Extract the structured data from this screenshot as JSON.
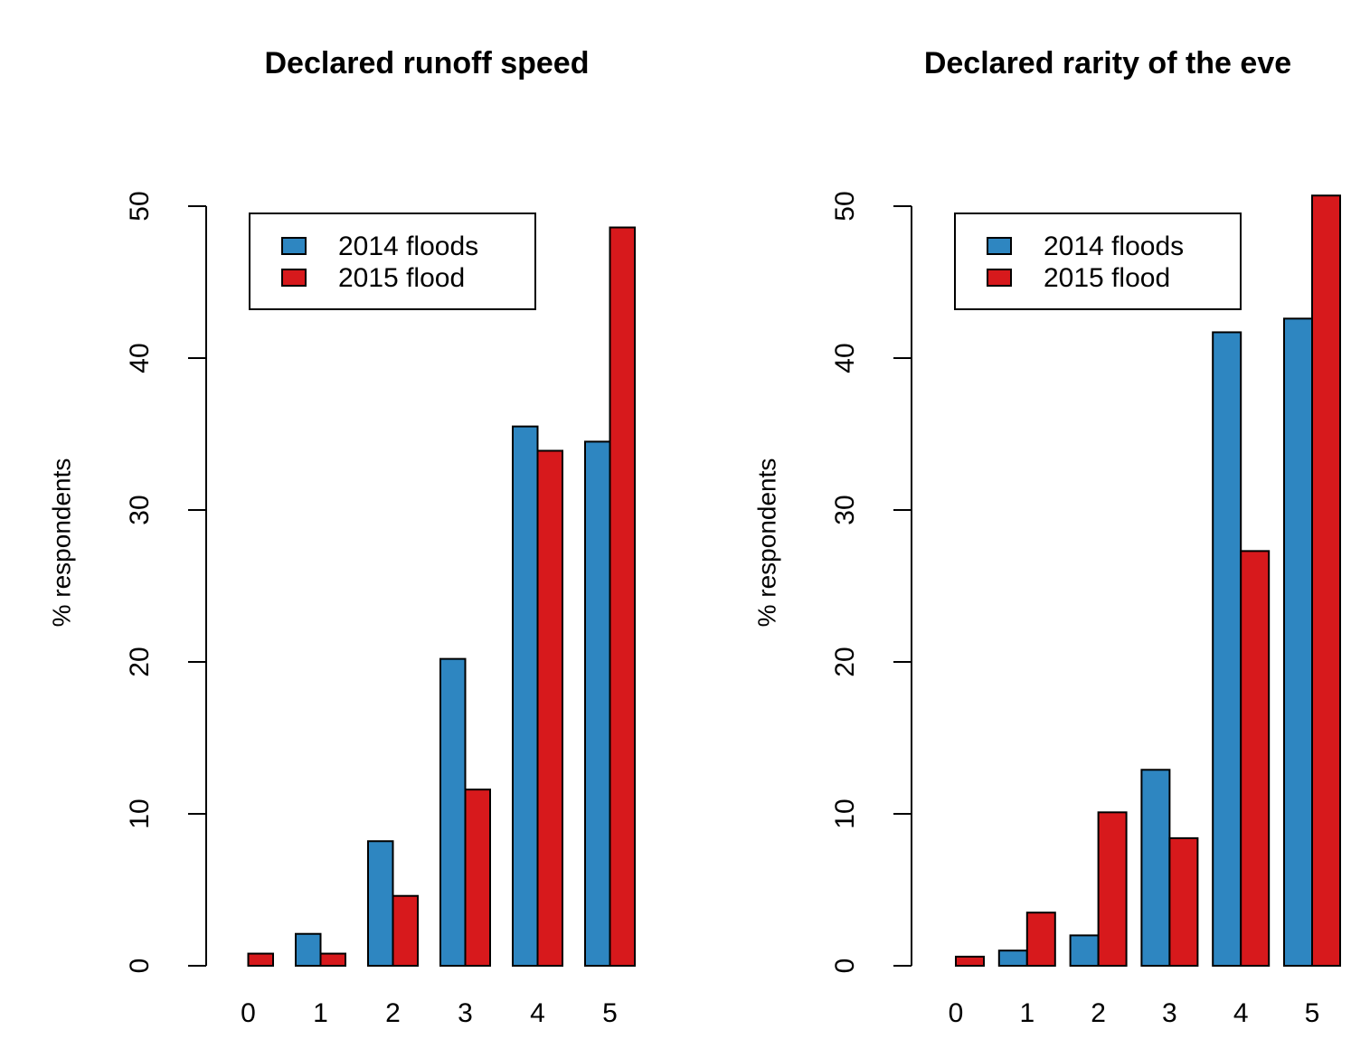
{
  "chart_data": [
    {
      "type": "bar",
      "title": "Declared runoff speed",
      "y_label": "% respondents",
      "categories": [
        "0",
        "1",
        "2",
        "3",
        "4",
        "5"
      ],
      "series": [
        {
          "name": "2014 floods",
          "color": "#2e86c1",
          "values": [
            0,
            2.1,
            8.2,
            20.2,
            35.5,
            34.5
          ]
        },
        {
          "name": "2015 flood",
          "color": "#d7191c",
          "values": [
            0.8,
            0.8,
            4.6,
            11.6,
            33.9,
            48.6
          ]
        }
      ],
      "ylim": [
        0,
        50
      ],
      "yticks": [
        0,
        10,
        20,
        30,
        40,
        50
      ],
      "legend": "top-left"
    },
    {
      "type": "bar",
      "title": "Declared rarity of the eve",
      "y_label": "% respondents",
      "categories": [
        "0",
        "1",
        "2",
        "3",
        "4",
        "5"
      ],
      "series": [
        {
          "name": "2014 floods",
          "color": "#2e86c1",
          "values": [
            0,
            1.0,
            2.0,
            12.9,
            41.7,
            42.6
          ]
        },
        {
          "name": "2015 flood",
          "color": "#d7191c",
          "values": [
            0.6,
            3.5,
            10.1,
            8.4,
            27.3,
            50.7
          ]
        }
      ],
      "ylim": [
        0,
        50
      ],
      "yticks": [
        0,
        10,
        20,
        30,
        40,
        50
      ],
      "legend": "top-left"
    }
  ]
}
